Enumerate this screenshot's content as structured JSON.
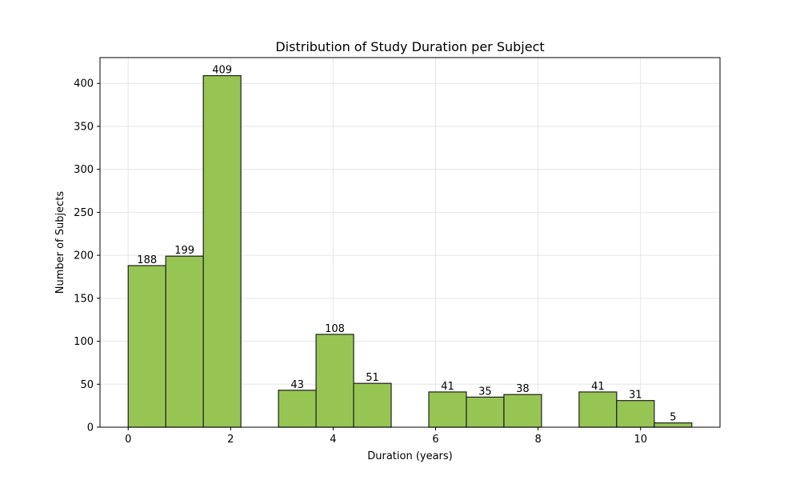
{
  "chart_data": {
    "type": "bar",
    "title": "Distribution of Study Duration per Subject",
    "xlabel": "Duration (years)",
    "ylabel": "Number of Subjects",
    "xlim": [
      -0.55,
      11.55
    ],
    "ylim": [
      0,
      430
    ],
    "x_ticks": [
      0,
      2,
      4,
      6,
      8,
      10
    ],
    "y_ticks": [
      0,
      50,
      100,
      150,
      200,
      250,
      300,
      350,
      400
    ],
    "bin_width": 0.7333,
    "bins": [
      {
        "x0": 0.0,
        "x1": 0.7333,
        "value": 188
      },
      {
        "x0": 0.7333,
        "x1": 1.4667,
        "value": 199
      },
      {
        "x0": 1.4667,
        "x1": 2.2,
        "value": 409
      },
      {
        "x0": 2.9333,
        "x1": 3.6667,
        "value": 43
      },
      {
        "x0": 3.6667,
        "x1": 4.4,
        "value": 108
      },
      {
        "x0": 4.4,
        "x1": 5.1333,
        "value": 51
      },
      {
        "x0": 5.8667,
        "x1": 6.6,
        "value": 41
      },
      {
        "x0": 6.6,
        "x1": 7.3333,
        "value": 35
      },
      {
        "x0": 7.3333,
        "x1": 8.0667,
        "value": 38
      },
      {
        "x0": 8.8,
        "x1": 9.5333,
        "value": 41
      },
      {
        "x0": 9.5333,
        "x1": 10.2667,
        "value": 31
      },
      {
        "x0": 10.2667,
        "x1": 11.0,
        "value": 5
      }
    ],
    "grid": true,
    "bar_color": "#97c554",
    "bar_edge_color": "#1f1f1f",
    "grid_color": "#e6e6e6"
  }
}
